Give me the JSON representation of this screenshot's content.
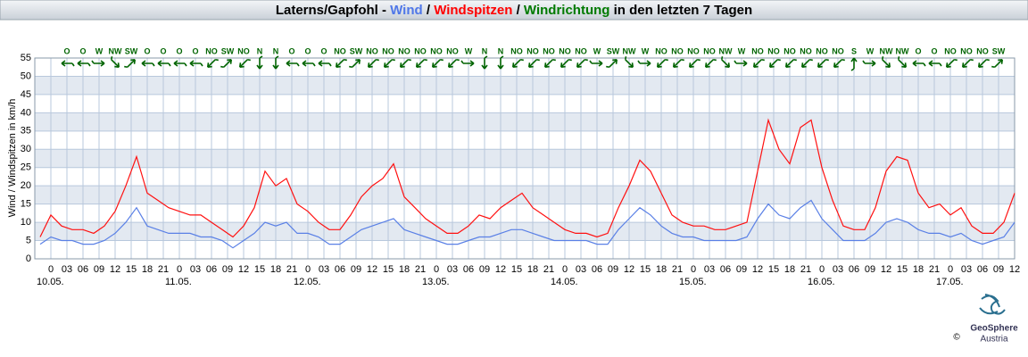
{
  "chart_data": {
    "type": "line",
    "title": [
      {
        "text": "Laterns/Gapfohl - ",
        "color": "#000000"
      },
      {
        "text": "Wind",
        "color": "#4f77e8"
      },
      {
        "text": " / ",
        "color": "#000000"
      },
      {
        "text": "Windspitzen",
        "color": "#ff0000"
      },
      {
        "text": " / ",
        "color": "#000000"
      },
      {
        "text": "Windrichtung",
        "color": "#007a00"
      },
      {
        "text": " in den letzten 7 Tagen",
        "color": "#000000"
      }
    ],
    "y_label": "Wind / Windspitzen in km/h",
    "xlim": [
      -3,
      180
    ],
    "ylim": [
      0,
      55
    ],
    "yticks": [
      0,
      5,
      10,
      15,
      20,
      25,
      30,
      35,
      40,
      45,
      50,
      55
    ],
    "xticks": [
      0,
      {
        "value": 3,
        "label": "03"
      },
      {
        "value": 6,
        "label": "06"
      },
      {
        "value": 9,
        "label": "09"
      },
      {
        "value": 12,
        "label": "12"
      },
      {
        "value": 15,
        "label": "15"
      },
      {
        "value": 18,
        "label": "18"
      },
      {
        "value": 21,
        "label": "21"
      },
      {
        "value": 24,
        "label": "0"
      },
      {
        "value": 27,
        "label": "03"
      },
      {
        "value": 30,
        "label": "06"
      },
      {
        "value": 33,
        "label": "09"
      },
      {
        "value": 36,
        "label": "12"
      },
      {
        "value": 39,
        "label": "15"
      },
      {
        "value": 42,
        "label": "18"
      },
      {
        "value": 45,
        "label": "21"
      },
      {
        "value": 48,
        "label": "0"
      },
      {
        "value": 51,
        "label": "03"
      },
      {
        "value": 54,
        "label": "06"
      },
      {
        "value": 57,
        "label": "09"
      },
      {
        "value": 60,
        "label": "12"
      },
      {
        "value": 63,
        "label": "15"
      },
      {
        "value": 66,
        "label": "18"
      },
      {
        "value": 69,
        "label": "21"
      },
      {
        "value": 72,
        "label": "0"
      },
      {
        "value": 75,
        "label": "03"
      },
      {
        "value": 78,
        "label": "06"
      },
      {
        "value": 81,
        "label": "09"
      },
      {
        "value": 84,
        "label": "12"
      },
      {
        "value": 87,
        "label": "15"
      },
      {
        "value": 90,
        "label": "18"
      },
      {
        "value": 93,
        "label": "21"
      },
      {
        "value": 96,
        "label": "0"
      },
      {
        "value": 99,
        "label": "03"
      },
      {
        "value": 102,
        "label": "06"
      },
      {
        "value": 105,
        "label": "09"
      },
      {
        "value": 108,
        "label": "12"
      },
      {
        "value": 111,
        "label": "15"
      },
      {
        "value": 114,
        "label": "18"
      },
      {
        "value": 117,
        "label": "21"
      },
      {
        "value": 120,
        "label": "0"
      },
      {
        "value": 123,
        "label": "03"
      },
      {
        "value": 126,
        "label": "06"
      },
      {
        "value": 129,
        "label": "09"
      },
      {
        "value": 132,
        "label": "12"
      },
      {
        "value": 135,
        "label": "15"
      },
      {
        "value": 138,
        "label": "18"
      },
      {
        "value": 141,
        "label": "21"
      },
      {
        "value": 144,
        "label": "0"
      },
      {
        "value": 147,
        "label": "03"
      },
      {
        "value": 150,
        "label": "06"
      },
      {
        "value": 153,
        "label": "09"
      },
      {
        "value": 156,
        "label": "12"
      },
      {
        "value": 159,
        "label": "15"
      },
      {
        "value": 162,
        "label": "18"
      },
      {
        "value": 165,
        "label": "21"
      },
      {
        "value": 168,
        "label": "0"
      },
      {
        "value": 171,
        "label": "03"
      },
      {
        "value": 174,
        "label": "06"
      },
      {
        "value": 177,
        "label": "09"
      },
      {
        "value": 180,
        "label": "12"
      }
    ],
    "day_labels": [
      {
        "value": 0,
        "label": "10.05."
      },
      {
        "value": 24,
        "label": "11.05."
      },
      {
        "value": 48,
        "label": "12.05."
      },
      {
        "value": 72,
        "label": "13.05."
      },
      {
        "value": 96,
        "label": "14.05."
      },
      {
        "value": 120,
        "label": "15.05."
      },
      {
        "value": 144,
        "label": "16.05."
      },
      {
        "value": 168,
        "label": "17.05."
      }
    ],
    "grid": true,
    "x": [
      -2,
      0,
      2,
      4,
      6,
      8,
      10,
      12,
      14,
      16,
      18,
      20,
      22,
      24,
      26,
      28,
      30,
      32,
      34,
      36,
      38,
      40,
      42,
      44,
      46,
      48,
      50,
      52,
      54,
      56,
      58,
      60,
      62,
      64,
      66,
      68,
      70,
      72,
      74,
      76,
      78,
      80,
      82,
      84,
      86,
      88,
      90,
      92,
      94,
      96,
      98,
      100,
      102,
      104,
      106,
      108,
      110,
      112,
      114,
      116,
      118,
      120,
      122,
      124,
      126,
      128,
      130,
      132,
      134,
      136,
      138,
      140,
      142,
      144,
      146,
      148,
      150,
      152,
      154,
      156,
      158,
      160,
      162,
      164,
      166,
      168,
      170,
      172,
      174,
      176,
      178,
      180
    ],
    "series": [
      {
        "name": "Windspitzen",
        "color": "#ff1010",
        "values": [
          6,
          12,
          9,
          8,
          8,
          7,
          9,
          13,
          20,
          28,
          18,
          16,
          14,
          13,
          12,
          12,
          10,
          8,
          6,
          9,
          14,
          24,
          20,
          22,
          15,
          13,
          10,
          8,
          8,
          12,
          17,
          20,
          22,
          26,
          17,
          14,
          11,
          9,
          7,
          7,
          9,
          12,
          11,
          14,
          16,
          18,
          14,
          12,
          10,
          8,
          7,
          7,
          6,
          7,
          14,
          20,
          27,
          24,
          18,
          12,
          10,
          9,
          9,
          8,
          8,
          9,
          10,
          24,
          38,
          30,
          26,
          36,
          38,
          25,
          16,
          9,
          8,
          8,
          14,
          24,
          28,
          27,
          18,
          14,
          15,
          12,
          14,
          9,
          7,
          7,
          10,
          18
        ]
      },
      {
        "name": "Wind",
        "color": "#5a80e6",
        "values": [
          4,
          6,
          5,
          5,
          4,
          4,
          5,
          7,
          10,
          14,
          9,
          8,
          7,
          7,
          7,
          6,
          6,
          5,
          3,
          5,
          7,
          10,
          9,
          10,
          7,
          7,
          6,
          4,
          4,
          6,
          8,
          9,
          10,
          11,
          8,
          7,
          6,
          5,
          4,
          4,
          5,
          6,
          6,
          7,
          8,
          8,
          7,
          6,
          5,
          5,
          5,
          5,
          4,
          4,
          8,
          11,
          14,
          12,
          9,
          7,
          6,
          6,
          5,
          5,
          5,
          5,
          6,
          11,
          15,
          12,
          11,
          14,
          16,
          11,
          8,
          5,
          5,
          5,
          7,
          10,
          11,
          10,
          8,
          7,
          7,
          6,
          7,
          5,
          4,
          5,
          6,
          10
        ]
      }
    ],
    "wind_direction": {
      "x": [
        3,
        6,
        9,
        12,
        15,
        18,
        21,
        24,
        27,
        30,
        33,
        36,
        39,
        42,
        45,
        48,
        51,
        54,
        57,
        60,
        63,
        66,
        69,
        72,
        75,
        78,
        81,
        84,
        87,
        90,
        93,
        96,
        99,
        102,
        105,
        108,
        111,
        114,
        117,
        120,
        123,
        126,
        129,
        132,
        135,
        138,
        141,
        144,
        147,
        150,
        153,
        156,
        159,
        162,
        165,
        168,
        171,
        174,
        177
      ],
      "labels": [
        "O",
        "O",
        "W",
        "NW",
        "SW",
        "O",
        "O",
        "O",
        "O",
        "NO",
        "SW",
        "NO",
        "N",
        "N",
        "O",
        "O",
        "O",
        "NO",
        "SW",
        "NO",
        "NO",
        "NO",
        "NO",
        "NO",
        "NO",
        "W",
        "N",
        "N",
        "NO",
        "NO",
        "NO",
        "NO",
        "NO",
        "W",
        "SW",
        "NW",
        "W",
        "NO",
        "NO",
        "NO",
        "NO",
        "NW",
        "W",
        "NO",
        "NO",
        "NO",
        "NO",
        "NO",
        "NO",
        "S",
        "W",
        "NW",
        "NW",
        "O",
        "O",
        "NO",
        "NO",
        "NO",
        "SW"
      ],
      "color": "#006400"
    },
    "logo": {
      "name": "GeoSphere",
      "sub": "Austria",
      "copyright": "©"
    }
  }
}
